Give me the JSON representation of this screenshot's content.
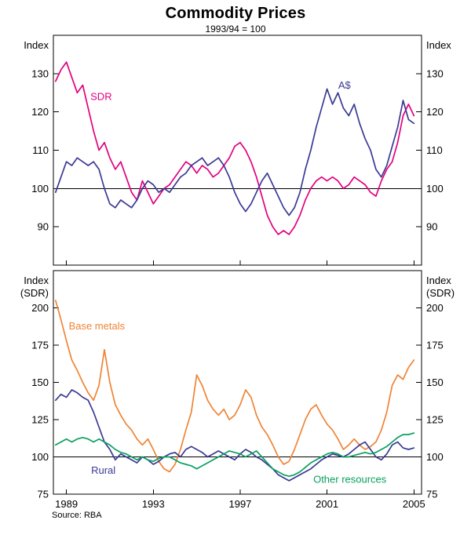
{
  "header": {
    "title": "Commodity Prices",
    "subtitle": "1993/94 = 100"
  },
  "footer": {
    "source": "Source: RBA"
  },
  "colors": {
    "sdr_pink": "#e3007e",
    "navy_blue": "#3a3a94",
    "base_metals_orange": "#ef8435",
    "other_resources_green": "#09a060",
    "axis_black": "#000000"
  },
  "chart_data": [
    {
      "type": "line",
      "panel": "top",
      "y_axis_title_left": [
        "Index"
      ],
      "y_axis_title_right": [
        "Index"
      ],
      "ylim": [
        80,
        140
      ],
      "yticks": [
        90,
        100,
        110,
        120,
        130
      ],
      "xlim": [
        1988.4,
        2005.35
      ],
      "xticks": [
        1989,
        1993,
        1997,
        2001,
        2005
      ],
      "show_x_labels": false,
      "reference_line": 100,
      "x_start": 1988.5,
      "x_step": 0.25,
      "x_unit": "year",
      "series": [
        {
          "name": "SDR",
          "color": "#e3007e",
          "label_pos": {
            "x": 1990.6,
            "y": 124
          },
          "values": [
            128,
            131,
            133,
            129,
            125,
            127,
            121,
            115,
            110,
            112,
            108,
            105,
            107,
            103,
            99,
            97,
            102,
            99,
            96,
            98,
            100,
            101,
            103,
            105,
            107,
            106,
            104,
            106,
            105,
            103,
            104,
            106,
            108,
            111,
            112,
            110,
            107,
            103,
            98,
            93,
            90,
            88,
            89,
            88,
            90,
            93,
            97,
            100,
            102,
            103,
            102,
            103,
            102,
            100,
            101,
            103,
            102,
            101,
            99,
            98,
            102,
            105,
            107,
            112,
            119,
            122,
            119
          ]
        },
        {
          "name": "A$",
          "color": "#3a3a94",
          "label_pos": {
            "x": 2001.8,
            "y": 127
          },
          "values": [
            99,
            103,
            107,
            106,
            108,
            107,
            106,
            107,
            105,
            100,
            96,
            95,
            97,
            96,
            95,
            97,
            100,
            102,
            101,
            99,
            100,
            99,
            101,
            103,
            104,
            106,
            107,
            108,
            106,
            107,
            108,
            106,
            103,
            99,
            96,
            94,
            96,
            99,
            102,
            104,
            101,
            98,
            95,
            93,
            95,
            99,
            105,
            110,
            116,
            121,
            126,
            122,
            125,
            121,
            119,
            122,
            117,
            113,
            110,
            105,
            103,
            106,
            111,
            116,
            123,
            118,
            117
          ]
        }
      ]
    },
    {
      "type": "line",
      "panel": "bottom",
      "y_axis_title_left": [
        "Index",
        "(SDR)"
      ],
      "y_axis_title_right": [
        "Index",
        "(SDR)"
      ],
      "ylim": [
        75,
        225
      ],
      "yticks": [
        75,
        100,
        125,
        150,
        175,
        200
      ],
      "xlim": [
        1988.4,
        2005.35
      ],
      "xticks": [
        1989,
        1993,
        1997,
        2001,
        2005
      ],
      "show_x_labels": true,
      "reference_line": 100,
      "x_start": 1988.5,
      "x_step": 0.25,
      "x_unit": "year",
      "series": [
        {
          "name": "Base metals",
          "color": "#ef8435",
          "label_pos": {
            "x": 1990.4,
            "y": 188
          },
          "values": [
            205,
            192,
            178,
            165,
            158,
            150,
            143,
            138,
            148,
            172,
            150,
            135,
            128,
            122,
            118,
            112,
            108,
            112,
            105,
            97,
            92,
            90,
            95,
            105,
            118,
            130,
            155,
            148,
            138,
            132,
            128,
            132,
            125,
            128,
            135,
            145,
            140,
            128,
            120,
            115,
            108,
            100,
            95,
            97,
            105,
            115,
            125,
            132,
            135,
            128,
            122,
            118,
            112,
            105,
            108,
            112,
            108,
            105,
            107,
            110,
            118,
            130,
            148,
            155,
            152,
            160,
            165
          ]
        },
        {
          "name": "Rural",
          "color": "#3a3a94",
          "label_pos": {
            "x": 1990.7,
            "y": 91
          },
          "values": [
            138,
            142,
            140,
            145,
            143,
            140,
            138,
            130,
            120,
            110,
            105,
            98,
            102,
            100,
            98,
            96,
            100,
            98,
            95,
            97,
            100,
            102,
            103,
            100,
            105,
            107,
            105,
            103,
            100,
            102,
            104,
            102,
            100,
            98,
            102,
            105,
            103,
            100,
            98,
            95,
            92,
            88,
            86,
            84,
            86,
            88,
            90,
            92,
            95,
            98,
            100,
            102,
            101,
            100,
            102,
            105,
            108,
            110,
            105,
            100,
            98,
            102,
            108,
            110,
            106,
            105,
            106
          ]
        },
        {
          "name": "Other resources",
          "color": "#09a060",
          "label_pos": {
            "x": 2002.05,
            "y": 85
          },
          "values": [
            108,
            110,
            112,
            110,
            112,
            113,
            112,
            110,
            112,
            110,
            108,
            105,
            103,
            102,
            100,
            98,
            100,
            98,
            97,
            99,
            100,
            100,
            98,
            96,
            95,
            94,
            92,
            94,
            96,
            98,
            100,
            102,
            104,
            103,
            102,
            100,
            102,
            104,
            100,
            96,
            92,
            90,
            88,
            87,
            88,
            90,
            93,
            96,
            98,
            100,
            102,
            103,
            102,
            100,
            100,
            101,
            102,
            103,
            102,
            103,
            105,
            107,
            110,
            113,
            115,
            115,
            116
          ]
        }
      ]
    }
  ]
}
